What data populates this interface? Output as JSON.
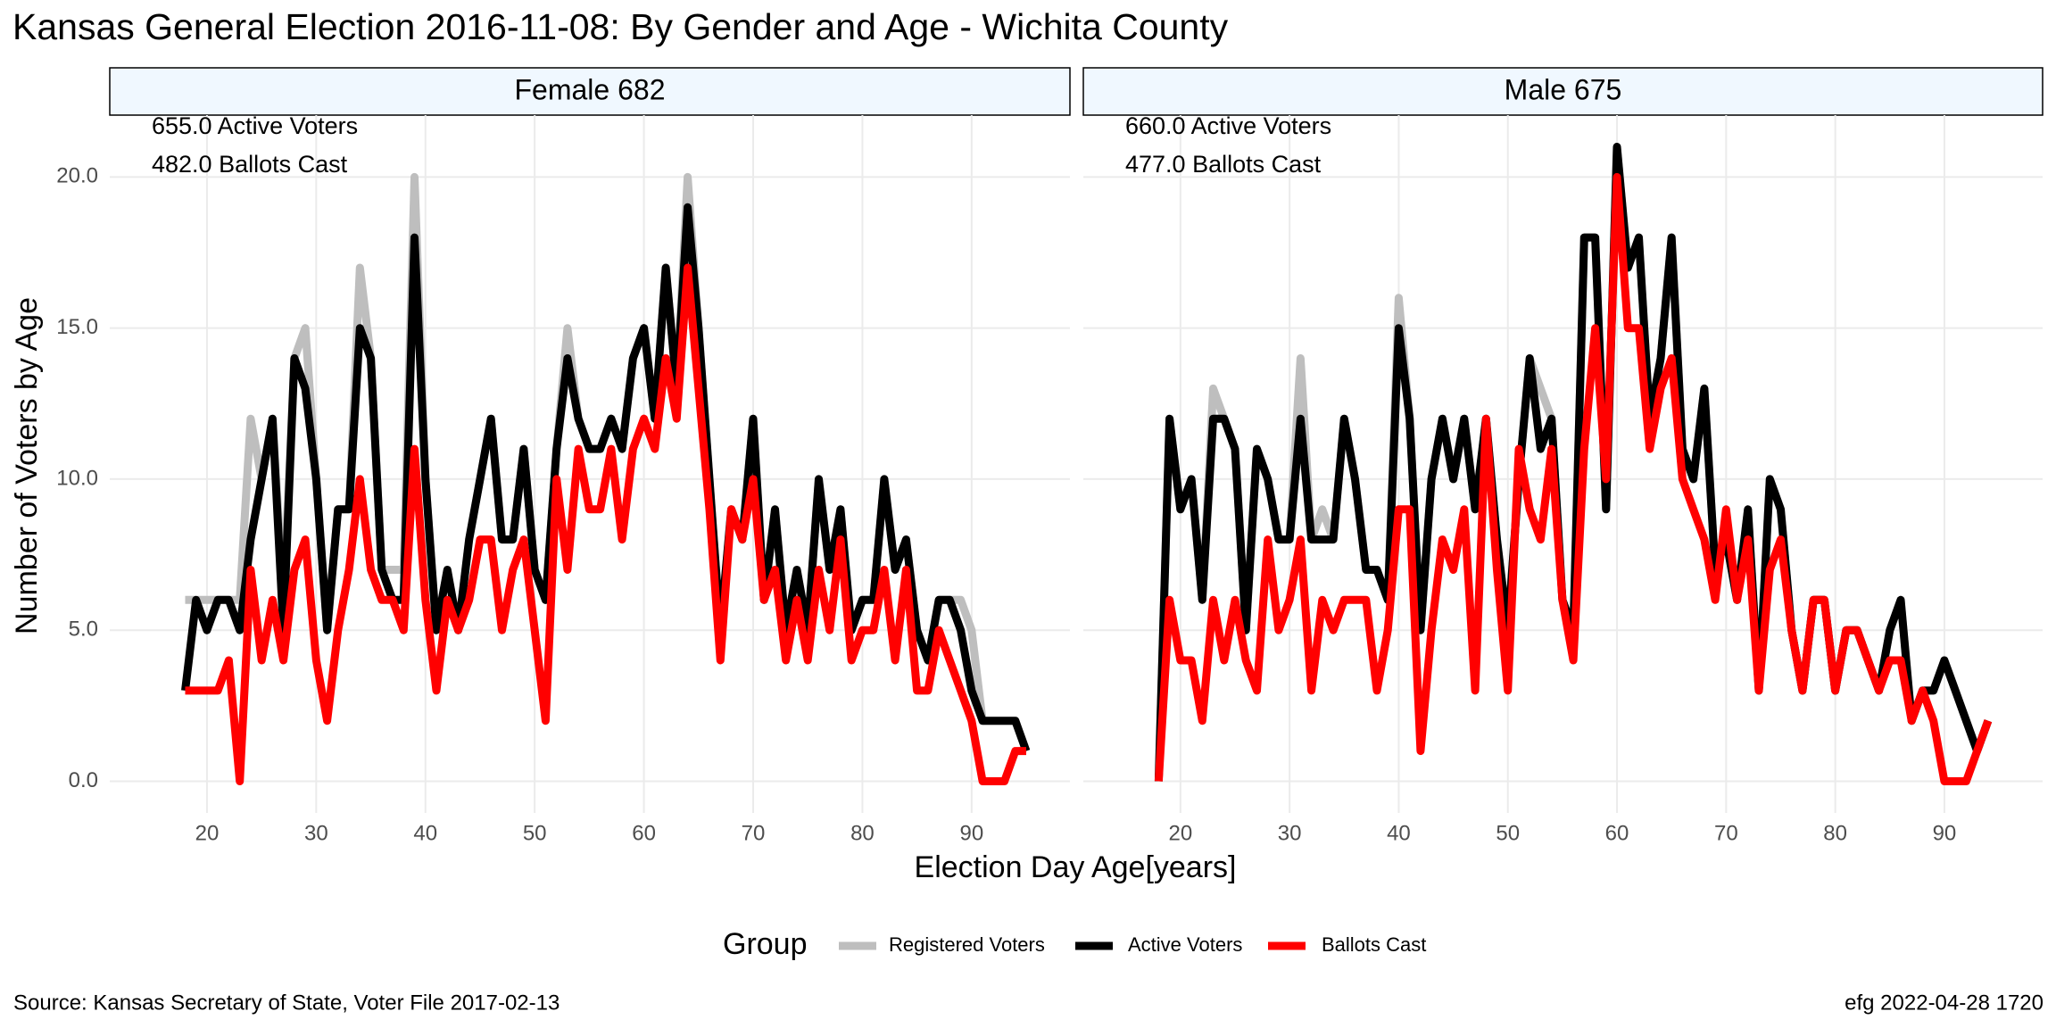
{
  "title": "Kansas General Election 2016-11-08:  By Gender and Age - Wichita County",
  "x_label": "Election Day Age[years]",
  "y_label": "Number of Voters by Age",
  "legend_title": "Group",
  "source": "Source:  Kansas Secretary of State, Voter File  2017-02-13",
  "credit": "efg 2022-04-28 1720",
  "chart_data": [
    {
      "type": "line",
      "title": "Female 682",
      "annotations": [
        "655.0 Active Voters",
        "482.0 Ballots Cast"
      ],
      "xlim": [
        11.1,
        99
      ],
      "xticks": [
        20,
        30,
        40,
        50,
        60,
        70,
        80,
        90
      ],
      "ylim": [
        -1.05,
        22.05
      ],
      "yticks": [
        {
          "value": 0,
          "label": "0.0"
        },
        {
          "value": 5,
          "label": "5.0"
        },
        {
          "value": 10,
          "label": "10.0"
        },
        {
          "value": 15,
          "label": "15.0"
        },
        {
          "value": 20,
          "label": "20.0"
        }
      ],
      "grid": true,
      "x": [
        18,
        19,
        20,
        21,
        22,
        23,
        24,
        25,
        26,
        27,
        28,
        29,
        30,
        31,
        32,
        33,
        34,
        35,
        36,
        37,
        38,
        39,
        40,
        41,
        42,
        43,
        44,
        45,
        46,
        47,
        48,
        49,
        50,
        51,
        52,
        53,
        54,
        55,
        56,
        57,
        58,
        59,
        60,
        61,
        62,
        63,
        64,
        65,
        66,
        67,
        68,
        69,
        70,
        71,
        72,
        73,
        74,
        75,
        76,
        77,
        78,
        79,
        80,
        81,
        82,
        83,
        84,
        85,
        86,
        87,
        88,
        89,
        90,
        91,
        92,
        93,
        94,
        95
      ],
      "series": [
        {
          "name": "Registered Voters",
          "color": "#bebebe",
          "values": [
            6,
            6,
            6,
            6,
            6,
            6,
            12,
            10,
            12,
            6,
            14,
            15,
            10,
            5,
            9,
            9,
            17,
            14,
            7,
            7,
            7,
            20,
            10,
            5,
            7,
            5,
            8,
            10,
            12,
            8,
            8,
            11,
            7,
            6,
            11,
            15,
            12,
            11,
            11,
            12,
            11,
            14,
            15,
            12,
            17,
            13,
            20,
            15,
            10,
            5,
            9,
            8,
            12,
            6,
            9,
            5,
            7,
            5,
            10,
            7,
            9,
            5,
            6,
            6,
            10,
            7,
            8,
            5,
            4,
            6,
            6,
            6,
            5,
            2,
            2,
            2,
            2,
            1
          ]
        },
        {
          "name": "Active Voters",
          "color": "#000000",
          "values": [
            3,
            6,
            5,
            6,
            6,
            5,
            8,
            10,
            12,
            5,
            14,
            13,
            10,
            5,
            9,
            9,
            15,
            14,
            7,
            6,
            6,
            18,
            10,
            5,
            7,
            5,
            8,
            10,
            12,
            8,
            8,
            11,
            7,
            6,
            11,
            14,
            12,
            11,
            11,
            12,
            11,
            14,
            15,
            12,
            17,
            13,
            19,
            15,
            10,
            5,
            9,
            8,
            12,
            6,
            9,
            5,
            7,
            5,
            10,
            7,
            9,
            5,
            6,
            6,
            10,
            7,
            8,
            5,
            4,
            6,
            6,
            5,
            3,
            2,
            2,
            2,
            2,
            1
          ]
        },
        {
          "name": "Ballots Cast",
          "color": "#ff0000",
          "values": [
            3,
            3,
            3,
            3,
            4,
            0,
            7,
            4,
            6,
            4,
            7,
            8,
            4,
            2,
            5,
            7,
            10,
            7,
            6,
            6,
            5,
            11,
            6,
            3,
            6,
            5,
            6,
            8,
            8,
            5,
            7,
            8,
            5,
            2,
            10,
            7,
            11,
            9,
            9,
            11,
            8,
            11,
            12,
            11,
            14,
            12,
            17,
            13,
            9,
            4,
            9,
            8,
            10,
            6,
            7,
            4,
            6,
            4,
            7,
            5,
            8,
            4,
            5,
            5,
            7,
            4,
            7,
            3,
            3,
            5,
            4,
            3,
            2,
            0,
            0,
            0,
            1,
            1
          ]
        }
      ]
    },
    {
      "type": "line",
      "title": "Male 675",
      "annotations": [
        "660.0 Active Voters",
        "477.0 Ballots Cast"
      ],
      "xlim": [
        11.1,
        99
      ],
      "xticks": [
        20,
        30,
        40,
        50,
        60,
        70,
        80,
        90
      ],
      "ylim": [
        -1.05,
        22.05
      ],
      "yticks": [
        {
          "value": 0,
          "label": "0.0"
        },
        {
          "value": 5,
          "label": "5.0"
        },
        {
          "value": 10,
          "label": "10.0"
        },
        {
          "value": 15,
          "label": "15.0"
        },
        {
          "value": 20,
          "label": "20.0"
        }
      ],
      "grid": true,
      "x": [
        18,
        19,
        20,
        21,
        22,
        23,
        24,
        25,
        26,
        27,
        28,
        29,
        30,
        31,
        32,
        33,
        34,
        35,
        36,
        37,
        38,
        39,
        40,
        41,
        42,
        43,
        44,
        45,
        46,
        47,
        48,
        49,
        50,
        51,
        52,
        53,
        54,
        55,
        56,
        57,
        58,
        59,
        60,
        61,
        62,
        63,
        64,
        65,
        66,
        67,
        68,
        69,
        70,
        71,
        72,
        73,
        74,
        75,
        76,
        77,
        78,
        79,
        80,
        81,
        82,
        83,
        84,
        85,
        86,
        87,
        88,
        89,
        90,
        91,
        92,
        93,
        94
      ],
      "series": [
        {
          "name": "Registered Voters",
          "color": "#bebebe",
          "values": [
            0,
            12,
            9,
            10,
            6,
            13,
            12,
            11,
            5,
            11,
            10,
            8,
            8,
            14,
            8,
            9,
            8,
            12,
            10,
            7,
            7,
            6,
            16,
            12,
            5,
            10,
            12,
            10,
            12,
            9,
            12,
            8,
            5,
            10,
            14,
            13,
            12,
            6,
            5,
            18,
            18,
            9,
            21,
            17,
            18,
            12,
            14,
            18,
            11,
            10,
            13,
            7,
            8,
            6,
            9,
            3,
            10,
            9,
            5,
            3,
            6,
            6,
            3,
            5,
            5,
            4,
            3,
            5,
            6,
            2,
            3,
            3,
            4,
            3,
            2,
            1,
            2
          ]
        },
        {
          "name": "Active Voters",
          "color": "#000000",
          "values": [
            0,
            12,
            9,
            10,
            6,
            12,
            12,
            11,
            5,
            11,
            10,
            8,
            8,
            12,
            8,
            8,
            8,
            12,
            10,
            7,
            7,
            6,
            15,
            12,
            5,
            10,
            12,
            10,
            12,
            9,
            12,
            8,
            5,
            10,
            14,
            11,
            12,
            6,
            5,
            18,
            18,
            9,
            21,
            17,
            18,
            12,
            14,
            18,
            11,
            10,
            13,
            7,
            8,
            6,
            9,
            3,
            10,
            9,
            5,
            3,
            6,
            6,
            3,
            5,
            5,
            4,
            3,
            5,
            6,
            2,
            3,
            3,
            4,
            3,
            2,
            1,
            2
          ]
        },
        {
          "name": "Ballots Cast",
          "color": "#ff0000",
          "values": [
            0,
            6,
            4,
            4,
            2,
            6,
            4,
            6,
            4,
            3,
            8,
            5,
            6,
            8,
            3,
            6,
            5,
            6,
            6,
            6,
            3,
            5,
            9,
            9,
            1,
            5,
            8,
            7,
            9,
            3,
            12,
            7,
            3,
            11,
            9,
            8,
            11,
            6,
            4,
            11,
            15,
            10,
            20,
            15,
            15,
            11,
            13,
            14,
            10,
            9,
            8,
            6,
            9,
            6,
            8,
            3,
            7,
            8,
            5,
            3,
            6,
            6,
            3,
            5,
            5,
            4,
            3,
            4,
            4,
            2,
            3,
            2,
            0,
            0,
            0,
            1,
            2
          ]
        }
      ]
    }
  ]
}
